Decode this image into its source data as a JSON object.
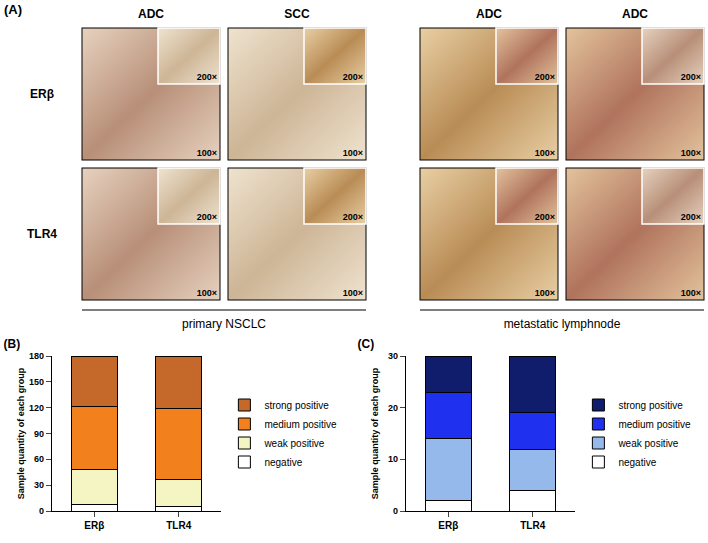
{
  "panel_a": {
    "label": "(A)",
    "rows": [
      "ERβ",
      "TLR4"
    ],
    "columns": [
      "ADC",
      "SCC",
      "ADC",
      "ADC"
    ],
    "inset_magnification": "200×",
    "magnification": "100×",
    "groups": [
      {
        "label": "primary NSCLC",
        "columns": 2
      },
      {
        "label": "metastatic lymphnode",
        "columns": 2
      }
    ]
  },
  "chart_data": [
    {
      "type": "bar",
      "title": "(B)",
      "stacked": true,
      "legend": "right",
      "categories": [
        "ERβ",
        "TLR4"
      ],
      "y_label": "Sample quantity of each group",
      "ylim": [
        0,
        180
      ],
      "yticks": [
        0,
        30,
        60,
        90,
        120,
        150,
        180
      ],
      "series": [
        {
          "name": "negative",
          "color": "#ffffff",
          "values": [
            8,
            5
          ]
        },
        {
          "name": "weak positive",
          "color": "#f4f5c2",
          "values": [
            40,
            32
          ]
        },
        {
          "name": "medium positive",
          "color": "#f2801c",
          "values": [
            73,
            82
          ]
        },
        {
          "name": "strong positive",
          "color": "#c4692a",
          "values": [
            59,
            61
          ]
        }
      ]
    },
    {
      "type": "bar",
      "title": "(C)",
      "stacked": true,
      "legend": "right",
      "categories": [
        "ERβ",
        "TLR4"
      ],
      "y_label": "Sample quantity of each group",
      "ylim": [
        0,
        30
      ],
      "yticks": [
        0,
        10,
        20,
        30
      ],
      "series": [
        {
          "name": "negative",
          "color": "#ffffff",
          "values": [
            2,
            4
          ]
        },
        {
          "name": "weak positive",
          "color": "#94b9ea",
          "values": [
            12,
            8
          ]
        },
        {
          "name": "medium positive",
          "color": "#1f30ee",
          "values": [
            9,
            7
          ]
        },
        {
          "name": "strong positive",
          "color": "#101c6c",
          "values": [
            7,
            11
          ]
        }
      ]
    }
  ]
}
